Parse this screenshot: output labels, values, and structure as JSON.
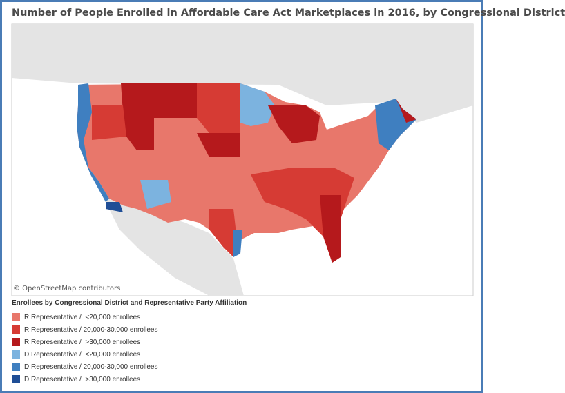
{
  "title": "Number of People Enrolled in Affordable Care Act Marketplaces in 2016, by Congressional District",
  "attribution": "© OpenStreetMap contributors",
  "legend": {
    "title": "Enrollees by Congressional District and Representative Party Affiliation",
    "items": [
      {
        "label": "R Representative /  <20,000 enrollees",
        "color": "#e8776b"
      },
      {
        "label": "R Representative / 20,000-30,000 enrollees",
        "color": "#d63b34"
      },
      {
        "label": "R Representative /  >30,000 enrollees",
        "color": "#b5191c"
      },
      {
        "label": "D Representative /  <20,000 enrollees",
        "color": "#7cb3df"
      },
      {
        "label": "D Representative / 20,000-30,000 enrollees",
        "color": "#3f7fc0"
      },
      {
        "label": "D Representative /  >30,000 enrollees",
        "color": "#1f4e96"
      }
    ]
  }
}
